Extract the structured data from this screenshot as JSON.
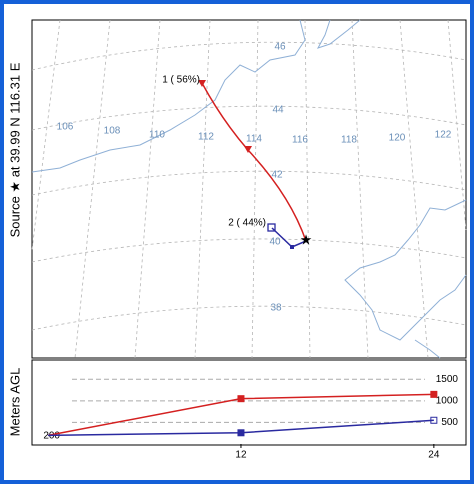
{
  "source_label": "Source ★ at 39.99 N 116.31 E",
  "map": {
    "lon_labels": [
      "106",
      "108",
      "110",
      "112",
      "114",
      "116",
      "118",
      "120",
      "122"
    ],
    "lat_labels": [
      "46",
      "44",
      "42",
      "40",
      "38"
    ],
    "trajectory_labels": [
      "1 ( 56%)",
      "2 ( 44%)"
    ]
  },
  "height_panel": {
    "y_label": "Meters AGL",
    "start_height": 200,
    "x": [
      0,
      12,
      24
    ],
    "xlim": [
      -1,
      26
    ],
    "xticks": [
      12,
      24
    ],
    "ylim": [
      0,
      1900
    ],
    "yticks": [
      500,
      1000,
      1500
    ],
    "series": [
      {
        "name": "1 ( 56%)",
        "color": "#d42020",
        "values": [
          200,
          1050,
          1150
        ]
      },
      {
        "name": "2 ( 44%)",
        "color": "#2a2aa0",
        "values": [
          200,
          260,
          550
        ]
      }
    ]
  }
}
